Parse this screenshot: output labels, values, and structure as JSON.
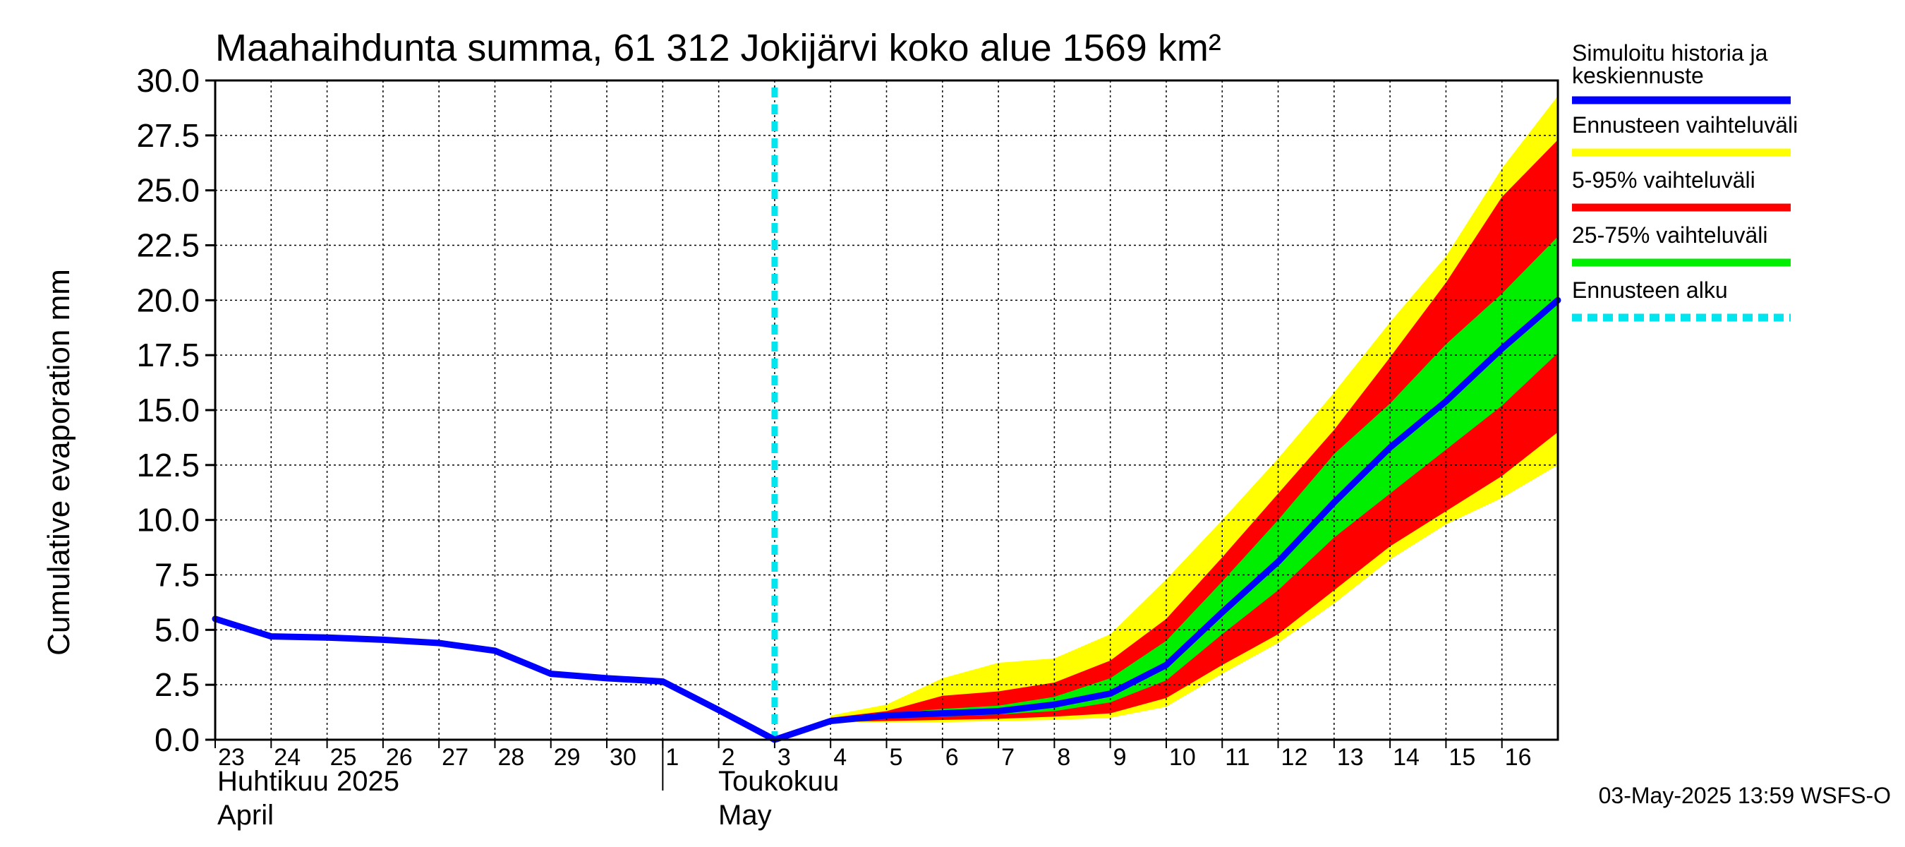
{
  "chart_data": {
    "type": "area",
    "title": "Maahaihdunta summa, 61 312 Jokijärvi koko alue 1569 km²",
    "ylabel": "Cumulative evaporation   mm",
    "xlabel": "",
    "ylim": [
      0,
      30
    ],
    "yticks": [
      "0.0",
      "2.5",
      "5.0",
      "7.5",
      "10.0",
      "12.5",
      "15.0",
      "17.5",
      "20.0",
      "22.5",
      "25.0",
      "27.5",
      "30.0"
    ],
    "x_range": [
      0,
      24
    ],
    "x_day_ticks": [
      {
        "label": "23",
        "x": 0
      },
      {
        "label": "24",
        "x": 1
      },
      {
        "label": "25",
        "x": 2
      },
      {
        "label": "26",
        "x": 3
      },
      {
        "label": "27",
        "x": 4
      },
      {
        "label": "28",
        "x": 5
      },
      {
        "label": "29",
        "x": 6
      },
      {
        "label": "30",
        "x": 7
      },
      {
        "label": "1",
        "x": 8
      },
      {
        "label": "2",
        "x": 9
      },
      {
        "label": "3",
        "x": 10
      },
      {
        "label": "4",
        "x": 11
      },
      {
        "label": "5",
        "x": 12
      },
      {
        "label": "6",
        "x": 13
      },
      {
        "label": "7",
        "x": 14
      },
      {
        "label": "8",
        "x": 15
      },
      {
        "label": "9",
        "x": 16
      },
      {
        "label": "10",
        "x": 17
      },
      {
        "label": "11",
        "x": 18
      },
      {
        "label": "12",
        "x": 19
      },
      {
        "label": "13",
        "x": 20
      },
      {
        "label": "14",
        "x": 21
      },
      {
        "label": "15",
        "x": 22
      },
      {
        "label": "16",
        "x": 23
      }
    ],
    "month_labels": {
      "april_fi": "Huhtikuu  2025",
      "april_en": "April",
      "may_fi": "Toukokuu",
      "may_en": "May"
    },
    "month_boundary_x": 8,
    "forecast_start_x": 10,
    "series": [
      {
        "name": "Simuloitu historia ja keskiennuste",
        "color": "#0000ff",
        "x": [
          0,
          1,
          2,
          3,
          4,
          5,
          6,
          7,
          8,
          9,
          10,
          11,
          12,
          13,
          14,
          15,
          16,
          17,
          18,
          19,
          20,
          21,
          22,
          23,
          24
        ],
        "values": [
          5.5,
          4.7,
          4.65,
          4.55,
          4.4,
          4.05,
          3.0,
          2.8,
          2.65,
          1.35,
          0.0,
          0.85,
          1.1,
          1.2,
          1.3,
          1.6,
          2.1,
          3.4,
          5.8,
          8.1,
          10.8,
          13.3,
          15.4,
          17.8,
          20.0
        ]
      }
    ],
    "bands": [
      {
        "name": "Ennusteen vaihteluväli",
        "color": "#ffff00",
        "x": [
          11,
          12,
          13,
          14,
          15,
          16,
          17,
          18,
          19,
          20,
          21,
          22,
          23,
          24
        ],
        "low": [
          0.8,
          0.8,
          0.8,
          0.85,
          0.9,
          1.0,
          1.5,
          3.0,
          4.4,
          6.2,
          8.2,
          9.8,
          11.0,
          12.5
        ],
        "high": [
          1.1,
          1.6,
          2.8,
          3.5,
          3.7,
          4.8,
          7.3,
          10.0,
          12.8,
          15.8,
          19.0,
          22.0,
          26.0,
          29.3
        ]
      },
      {
        "name": "5-95% vaihteluväli",
        "color": "#ff0000",
        "x": [
          11,
          12,
          13,
          14,
          15,
          16,
          17,
          18,
          19,
          20,
          21,
          22,
          23,
          24
        ],
        "low": [
          0.8,
          0.85,
          0.9,
          0.95,
          1.05,
          1.2,
          1.9,
          3.4,
          4.8,
          6.8,
          8.8,
          10.4,
          12.0,
          14.0
        ],
        "high": [
          1.0,
          1.3,
          2.0,
          2.2,
          2.6,
          3.6,
          5.5,
          8.3,
          11.2,
          14.1,
          17.4,
          20.8,
          24.7,
          27.3
        ]
      },
      {
        "name": "25-75% vaihteluväli",
        "color": "#00ee00",
        "x": [
          11,
          12,
          13,
          14,
          15,
          16,
          17,
          18,
          19,
          20,
          21,
          22,
          23,
          24
        ],
        "low": [
          0.85,
          1.0,
          1.05,
          1.15,
          1.3,
          1.7,
          2.7,
          4.8,
          6.8,
          9.2,
          11.2,
          13.2,
          15.2,
          17.6
        ],
        "high": [
          0.9,
          1.2,
          1.4,
          1.55,
          1.95,
          2.8,
          4.5,
          7.2,
          10.0,
          13.0,
          15.3,
          18.0,
          20.3,
          22.9
        ]
      }
    ],
    "legend": [
      {
        "label_line1": "Simuloitu historia ja",
        "label_line2": "keskiennuste",
        "color": "#0000ff",
        "style": "solid"
      },
      {
        "label_line1": "Ennusteen vaihteluväli",
        "label_line2": "",
        "color": "#ffff00",
        "style": "solid"
      },
      {
        "label_line1": "5-95% vaihteluväli",
        "label_line2": "",
        "color": "#ff0000",
        "style": "solid"
      },
      {
        "label_line1": "25-75% vaihteluväli",
        "label_line2": "",
        "color": "#00ee00",
        "style": "solid"
      },
      {
        "label_line1": "Ennusteen alku",
        "label_line2": "",
        "color": "#00e5ee",
        "style": "dashed"
      }
    ],
    "legend_position": "right",
    "grid": true,
    "footer": "03-May-2025 13:59 WSFS-O"
  }
}
